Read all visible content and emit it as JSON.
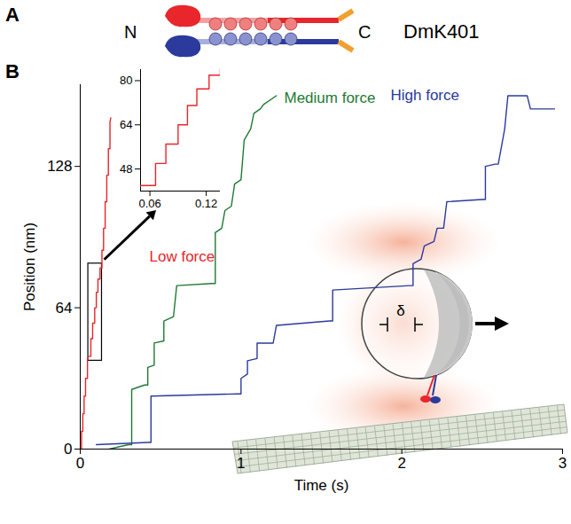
{
  "diagram": {
    "panel": "A",
    "n_terminus": "N",
    "c_terminus": "C",
    "label": "DmK401"
  },
  "chart_data": {
    "panel": "B",
    "type": "line",
    "xlabel": "Time (s)",
    "ylabel": "Position (nm)",
    "xlim": [
      0,
      3
    ],
    "ylim": [
      0,
      165
    ],
    "xticks": [
      0,
      1,
      2,
      3
    ],
    "yticks": [
      0,
      64,
      128
    ],
    "series": [
      {
        "name": "Low force",
        "color": "#e8262b",
        "x": [
          0,
          0.008,
          0.008,
          0.016,
          0.016,
          0.024,
          0.024,
          0.033,
          0.033,
          0.045,
          0.045,
          0.05,
          0.066,
          0.066,
          0.077,
          0.077,
          0.09,
          0.09,
          0.1,
          0.1,
          0.11,
          0.11,
          0.123,
          0.123,
          0.135,
          0.135,
          0.145,
          0.145,
          0.155,
          0.155,
          0.165,
          0.165,
          0.175,
          0.175,
          0.185,
          0.185,
          0.19
        ],
        "values": [
          0,
          0,
          8,
          8,
          16,
          16,
          24,
          24,
          32,
          32,
          40,
          42,
          42,
          50,
          50,
          57,
          57,
          64,
          64,
          71,
          71,
          77,
          77,
          82,
          82,
          90,
          90,
          100,
          100,
          112,
          112,
          124,
          124,
          136,
          136,
          148,
          150
        ]
      },
      {
        "name": "Medium force",
        "color": "#1e7a32",
        "x": [
          0.18,
          0.3,
          0.32,
          0.32,
          0.4,
          0.42,
          0.42,
          0.46,
          0.46,
          0.52,
          0.52,
          0.58,
          0.6,
          0.82,
          0.84,
          0.84,
          0.88,
          0.9,
          0.94,
          0.96,
          1.0,
          1.02,
          1.06,
          1.08,
          1.12,
          1.14,
          1.22
        ],
        "values": [
          0,
          2,
          2,
          27,
          29,
          29,
          37,
          38,
          48,
          49,
          58,
          60,
          74,
          75,
          75,
          98,
          100,
          108,
          110,
          120,
          122,
          140,
          145,
          152,
          154,
          156,
          160
        ]
      },
      {
        "name": "High force",
        "color": "#2b3a9c",
        "x": [
          0.1,
          0.42,
          0.44,
          0.44,
          0.98,
          1.0,
          1.0,
          1.04,
          1.04,
          1.1,
          1.1,
          1.2,
          1.22,
          1.55,
          1.57,
          1.57,
          2.05,
          2.07,
          2.07,
          2.12,
          2.14,
          2.2,
          2.22,
          2.26,
          2.28,
          2.5,
          2.52,
          2.52,
          2.58,
          2.6,
          2.64,
          2.66,
          2.78,
          2.8,
          2.95
        ],
        "values": [
          2,
          3,
          3,
          24,
          25,
          25,
          32,
          34,
          40,
          41,
          48,
          48,
          56,
          58,
          58,
          72,
          74,
          74,
          84,
          86,
          92,
          94,
          100,
          100,
          112,
          113,
          113,
          128,
          129,
          129,
          145,
          160,
          160,
          154,
          154
        ]
      }
    ],
    "annotations": [
      "δ"
    ],
    "inset": {
      "series": "Low force",
      "xlim": [
        0.05,
        0.135
      ],
      "ylim": [
        40,
        84
      ],
      "xticks": [
        0.06,
        0.12
      ],
      "yticks": [
        48,
        64,
        80
      ]
    }
  }
}
